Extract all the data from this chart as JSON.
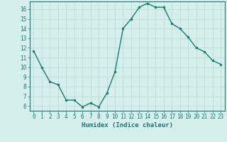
{
  "x": [
    0,
    1,
    2,
    3,
    4,
    5,
    6,
    7,
    8,
    9,
    10,
    11,
    12,
    13,
    14,
    15,
    16,
    17,
    18,
    19,
    20,
    21,
    22,
    23
  ],
  "y": [
    11.7,
    10.0,
    8.5,
    8.2,
    6.6,
    6.6,
    5.9,
    6.3,
    5.9,
    7.3,
    9.5,
    14.0,
    15.0,
    16.2,
    16.6,
    16.2,
    16.2,
    14.5,
    14.0,
    13.1,
    12.0,
    11.6,
    10.7,
    10.3
  ],
  "line_color": "#1a7a6e",
  "marker": "o",
  "marker_size": 2.0,
  "line_width": 1.0,
  "xlabel": "Humidex (Indice chaleur)",
  "bg_color": "#d5f0ec",
  "grid_color": "#b8d8d4",
  "axis_color": "#1a7a6e",
  "tick_color": "#1a7a6e",
  "label_color": "#1a7a6e",
  "xlim": [
    -0.5,
    23.5
  ],
  "ylim": [
    5.5,
    16.8
  ],
  "yticks": [
    6,
    7,
    8,
    9,
    10,
    11,
    12,
    13,
    14,
    15,
    16
  ],
  "xticks": [
    0,
    1,
    2,
    3,
    4,
    5,
    6,
    7,
    8,
    9,
    10,
    11,
    12,
    13,
    14,
    15,
    16,
    17,
    18,
    19,
    20,
    21,
    22,
    23
  ],
  "tick_fontsize": 5.5,
  "xlabel_fontsize": 6.5
}
